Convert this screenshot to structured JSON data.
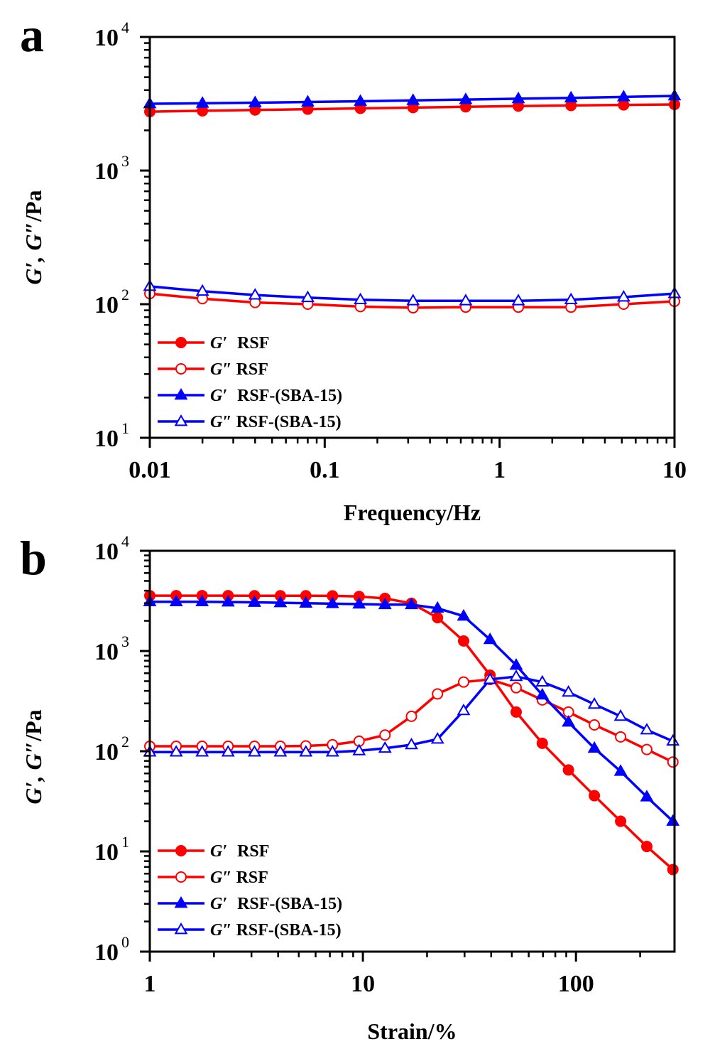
{
  "figure": {
    "panels": [
      "a",
      "b"
    ]
  },
  "chart_data": [
    {
      "panel": "a",
      "type": "line",
      "title": "",
      "xlabel": "Frequency/Hz",
      "ylabel": "G′, G″/Pa",
      "xscale": "log",
      "yscale": "log",
      "xlim": [
        0.01,
        10
      ],
      "ylim": [
        10,
        10000
      ],
      "xticks": [
        {
          "value": 0.01,
          "label": "0.01"
        },
        {
          "value": 0.1,
          "label": "0.1"
        },
        {
          "value": 1,
          "label": "1"
        },
        {
          "value": 10,
          "label": "10"
        }
      ],
      "yticks": [
        {
          "value": 10,
          "base": "10",
          "exp": "1"
        },
        {
          "value": 100,
          "base": "10",
          "exp": "2"
        },
        {
          "value": 1000,
          "base": "10",
          "exp": "3"
        },
        {
          "value": 10000,
          "base": "10",
          "exp": "4"
        }
      ],
      "grid": false,
      "legend_position": "bottom-left",
      "x": [
        0.01,
        0.02,
        0.04,
        0.08,
        0.16,
        0.32,
        0.64,
        1.28,
        2.56,
        5.12,
        10
      ],
      "series": [
        {
          "name": "G′ RSF",
          "symbol": "G′",
          "sample": "RSF",
          "color": "#ff0000",
          "marker": "circle",
          "filled": true,
          "values": [
            2760,
            2800,
            2840,
            2880,
            2920,
            2960,
            3000,
            3040,
            3070,
            3100,
            3125
          ]
        },
        {
          "name": "G″ RSF",
          "symbol": "G″",
          "sample": "RSF",
          "color": "#ff0000",
          "marker": "circle",
          "filled": false,
          "values": [
            120,
            110,
            103,
            100,
            96,
            94,
            95,
            95,
            95,
            100,
            105
          ]
        },
        {
          "name": "G′ RSF-(SBA-15)",
          "symbol": "G′",
          "sample": "RSF-(SBA-15)",
          "color": "#0000ff",
          "marker": "triangle",
          "filled": true,
          "values": [
            3160,
            3190,
            3220,
            3260,
            3300,
            3350,
            3400,
            3450,
            3500,
            3560,
            3620
          ]
        },
        {
          "name": "G″ RSF-(SBA-15)",
          "symbol": "G″",
          "sample": "RSF-(SBA-15)",
          "color": "#0000ff",
          "marker": "triangle",
          "filled": false,
          "values": [
            136,
            125,
            117,
            112,
            108,
            106,
            106,
            106,
            108,
            113,
            120
          ]
        }
      ]
    },
    {
      "panel": "b",
      "type": "line",
      "title": "",
      "xlabel": "Strain/%",
      "ylabel": "G′, G″/Pa",
      "xscale": "log",
      "yscale": "log",
      "xlim": [
        1,
        290
      ],
      "ylim": [
        1,
        10000
      ],
      "xticks": [
        {
          "value": 1,
          "label": "1"
        },
        {
          "value": 10,
          "label": "10"
        },
        {
          "value": 100,
          "label": "100"
        }
      ],
      "yticks": [
        {
          "value": 1,
          "base": "10",
          "exp": "0"
        },
        {
          "value": 10,
          "base": "10",
          "exp": "1"
        },
        {
          "value": 100,
          "base": "10",
          "exp": "2"
        },
        {
          "value": 1000,
          "base": "10",
          "exp": "3"
        },
        {
          "value": 10000,
          "base": "10",
          "exp": "4"
        }
      ],
      "grid": false,
      "legend_position": "bottom-left",
      "x": [
        1,
        1.33,
        1.76,
        2.33,
        3.1,
        4.1,
        5.4,
        7.2,
        9.6,
        12.7,
        16.9,
        22.4,
        29.7,
        39.5,
        52.4,
        69.5,
        92.2,
        122,
        162,
        215,
        285
      ],
      "series": [
        {
          "name": "G′ RSF",
          "symbol": "G′",
          "sample": "RSF",
          "color": "#ff0000",
          "marker": "circle",
          "filled": true,
          "values": [
            3570,
            3570,
            3570,
            3570,
            3560,
            3560,
            3560,
            3550,
            3500,
            3350,
            2990,
            2150,
            1260,
            574,
            246,
            120,
            65,
            36,
            20,
            11.2,
            6.6
          ]
        },
        {
          "name": "G″ RSF",
          "symbol": "G″",
          "sample": "RSF",
          "color": "#ff0000",
          "marker": "circle",
          "filled": false,
          "values": [
            112,
            112,
            112,
            112,
            112,
            112,
            113,
            116,
            126,
            145,
            223,
            373,
            490,
            520,
            430,
            325,
            246,
            183,
            139,
            104,
            78
          ]
        },
        {
          "name": "G′ RSF-(SBA-15)",
          "symbol": "G′",
          "sample": "RSF-(SBA-15)",
          "color": "#0000ff",
          "marker": "triangle",
          "filled": true,
          "values": [
            3100,
            3100,
            3100,
            3080,
            3060,
            3030,
            3000,
            2970,
            2940,
            2900,
            2900,
            2670,
            2230,
            1300,
            721,
            364,
            195,
            107,
            63,
            35,
            20
          ]
        },
        {
          "name": "G″ RSF-(SBA-15)",
          "symbol": "G″",
          "sample": "RSF-(SBA-15)",
          "color": "#0000ff",
          "marker": "triangle",
          "filled": false,
          "values": [
            98,
            98,
            98,
            98,
            98,
            98,
            98,
            98,
            101,
            107,
            116,
            132,
            254,
            520,
            556,
            490,
            388,
            294,
            223,
            163,
            126
          ]
        }
      ]
    }
  ]
}
